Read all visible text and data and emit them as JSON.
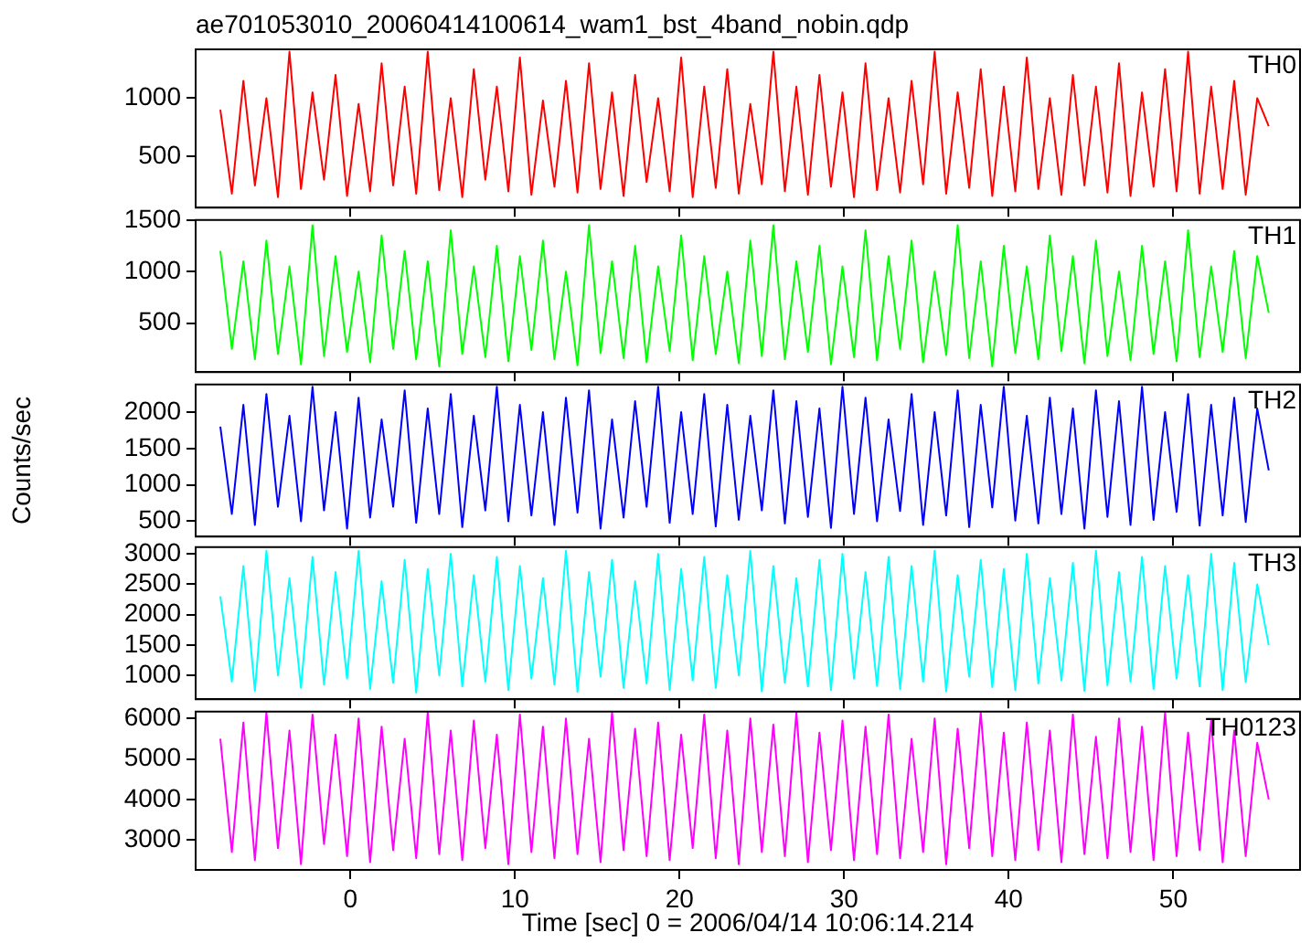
{
  "chart_data": [
    {
      "type": "line",
      "title": "ae701053010_20060414100614_wam1_bst_4band_nobin.qdp",
      "xlim": [
        -9.4,
        57.7
      ],
      "xticks": [
        0,
        10,
        20,
        30,
        40,
        50
      ],
      "ylim": [
        60,
        1420
      ],
      "yticks": [
        500,
        1000
      ],
      "tick_labels": "y",
      "x": [
        -7.9,
        -7.2,
        -6.5,
        -5.8,
        -5.1,
        -4.4,
        -3.7,
        -3.0,
        -2.3,
        -1.6,
        -0.9,
        -0.2,
        0.5,
        1.2,
        1.9,
        2.6,
        3.3,
        4.0,
        4.7,
        5.4,
        6.1,
        6.8,
        7.5,
        8.2,
        8.9,
        9.6,
        10.3,
        11.0,
        11.7,
        12.4,
        13.1,
        13.8,
        14.5,
        15.2,
        15.9,
        16.6,
        17.3,
        18.0,
        18.7,
        19.4,
        20.1,
        20.8,
        21.5,
        22.2,
        22.9,
        23.6,
        24.3,
        25.0,
        25.7,
        26.4,
        27.1,
        27.8,
        28.5,
        29.2,
        29.9,
        30.6,
        31.3,
        32.0,
        32.7,
        33.4,
        34.1,
        34.8,
        35.5,
        36.2,
        36.9,
        37.6,
        38.3,
        39.0,
        39.7,
        40.4,
        41.1,
        41.8,
        42.5,
        43.2,
        43.9,
        44.6,
        45.3,
        46.0,
        46.7,
        47.4,
        48.1,
        48.8,
        49.5,
        50.2,
        50.9,
        51.6,
        52.3,
        53.0,
        53.7,
        54.4,
        55.1,
        55.8
      ],
      "series": [
        {
          "name": "TH0",
          "color": "#ff0000",
          "values": [
            900,
            180,
            1150,
            250,
            1000,
            150,
            1400,
            220,
            1050,
            300,
            1200,
            160,
            950,
            200,
            1300,
            250,
            1100,
            180,
            1400,
            210,
            1000,
            150,
            1250,
            300,
            1100,
            200,
            1350,
            170,
            980,
            240,
            1150,
            190,
            1300,
            220,
            1050,
            160,
            1200,
            280,
            1000,
            200,
            1350,
            150,
            1100,
            230,
            1250,
            180,
            950,
            260,
            1400,
            200,
            1100,
            170,
            1200,
            240,
            1050,
            150,
            1300,
            210,
            1000,
            190,
            1150,
            260,
            1400,
            180,
            1050,
            230,
            1250,
            160,
            1100,
            200,
            1350,
            220,
            1000,
            170,
            1200,
            250,
            1100,
            190,
            1300,
            160,
            1050,
            240,
            1250,
            200,
            1400,
            180,
            1100,
            220,
            1150,
            170,
            1000,
            760
          ]
        }
      ]
    },
    {
      "type": "line",
      "xlim": [
        -9.4,
        57.7
      ],
      "xticks": [
        0,
        10,
        20,
        30,
        40,
        50
      ],
      "ylim": [
        25,
        1500
      ],
      "yticks": [
        500,
        1000,
        1500
      ],
      "tick_labels": "y",
      "x": [
        -7.9,
        -7.2,
        -6.5,
        -5.8,
        -5.1,
        -4.4,
        -3.7,
        -3.0,
        -2.3,
        -1.6,
        -0.9,
        -0.2,
        0.5,
        1.2,
        1.9,
        2.6,
        3.3,
        4.0,
        4.7,
        5.4,
        6.1,
        6.8,
        7.5,
        8.2,
        8.9,
        9.6,
        10.3,
        11.0,
        11.7,
        12.4,
        13.1,
        13.8,
        14.5,
        15.2,
        15.9,
        16.6,
        17.3,
        18.0,
        18.7,
        19.4,
        20.1,
        20.8,
        21.5,
        22.2,
        22.9,
        23.6,
        24.3,
        25.0,
        25.7,
        26.4,
        27.1,
        27.8,
        28.5,
        29.2,
        29.9,
        30.6,
        31.3,
        32.0,
        32.7,
        33.4,
        34.1,
        34.8,
        35.5,
        36.2,
        36.9,
        37.6,
        38.3,
        39.0,
        39.7,
        40.4,
        41.1,
        41.8,
        42.5,
        43.2,
        43.9,
        44.6,
        45.3,
        46.0,
        46.7,
        47.4,
        48.1,
        48.8,
        49.5,
        50.2,
        50.9,
        51.6,
        52.3,
        53.0,
        53.7,
        54.4,
        55.1,
        55.8
      ],
      "series": [
        {
          "name": "TH1",
          "color": "#00ff00",
          "values": [
            1200,
            250,
            1100,
            150,
            1300,
            200,
            1050,
            100,
            1450,
            180,
            1150,
            220,
            1000,
            120,
            1350,
            250,
            1200,
            150,
            1100,
            80,
            1400,
            200,
            1050,
            170,
            1250,
            130,
            1150,
            240,
            1300,
            150,
            1000,
            90,
            1450,
            210,
            1100,
            160,
            1250,
            120,
            1050,
            230,
            1350,
            140,
            1150,
            200,
            1000,
            110,
            1300,
            180,
            1450,
            150,
            1100,
            220,
            1250,
            100,
            1050,
            170,
            1400,
            140,
            1150,
            250,
            1300,
            120,
            1000,
            190,
            1450,
            160,
            1100,
            80,
            1250,
            210,
            1050,
            150,
            1350,
            230,
            1150,
            110,
            1300,
            180,
            1000,
            140,
            1250,
            200,
            1100,
            130,
            1400,
            170,
            1050,
            220,
            1200,
            160,
            1150,
            600
          ]
        }
      ]
    },
    {
      "type": "line",
      "ylabel": "Counts/sec",
      "xlim": [
        -9.4,
        57.7
      ],
      "xticks": [
        0,
        10,
        20,
        30,
        40,
        50
      ],
      "ylim": [
        290,
        2380
      ],
      "yticks": [
        500,
        1000,
        1500,
        2000
      ],
      "tick_labels": "y",
      "x": [
        -7.9,
        -7.2,
        -6.5,
        -5.8,
        -5.1,
        -4.4,
        -3.7,
        -3.0,
        -2.3,
        -1.6,
        -0.9,
        -0.2,
        0.5,
        1.2,
        1.9,
        2.6,
        3.3,
        4.0,
        4.7,
        5.4,
        6.1,
        6.8,
        7.5,
        8.2,
        8.9,
        9.6,
        10.3,
        11.0,
        11.7,
        12.4,
        13.1,
        13.8,
        14.5,
        15.2,
        15.9,
        16.6,
        17.3,
        18.0,
        18.7,
        19.4,
        20.1,
        20.8,
        21.5,
        22.2,
        22.9,
        23.6,
        24.3,
        25.0,
        25.7,
        26.4,
        27.1,
        27.8,
        28.5,
        29.2,
        29.9,
        30.6,
        31.3,
        32.0,
        32.7,
        33.4,
        34.1,
        34.8,
        35.5,
        36.2,
        36.9,
        37.6,
        38.3,
        39.0,
        39.7,
        40.4,
        41.1,
        41.8,
        42.5,
        43.2,
        43.9,
        44.6,
        45.3,
        46.0,
        46.7,
        47.4,
        48.1,
        48.8,
        49.5,
        50.2,
        50.9,
        51.6,
        52.3,
        53.0,
        53.7,
        54.4,
        55.1,
        55.8
      ],
      "series": [
        {
          "name": "TH2",
          "color": "#0000ff",
          "values": [
            1800,
            600,
            2100,
            450,
            2250,
            700,
            1950,
            500,
            2350,
            650,
            2000,
            400,
            2200,
            550,
            1900,
            700,
            2300,
            480,
            2050,
            600,
            2250,
            420,
            1950,
            650,
            2350,
            500,
            2100,
            580,
            2000,
            450,
            2200,
            620,
            2300,
            400,
            1900,
            550,
            2150,
            700,
            2350,
            480,
            2000,
            600,
            2250,
            430,
            2100,
            520,
            1950,
            650,
            2300,
            470,
            2150,
            560,
            2050,
            410,
            2350,
            600,
            2200,
            500,
            1900,
            640,
            2250,
            450,
            2000,
            580,
            2300,
            420,
            2100,
            690,
            2350,
            510,
            1950,
            470,
            2200,
            600,
            2050,
            400,
            2300,
            560,
            2150,
            450,
            2350,
            520,
            2000,
            630,
            2250,
            440,
            2100,
            580,
            2200,
            490,
            2050,
            1200
          ]
        }
      ]
    },
    {
      "type": "line",
      "xlim": [
        -9.4,
        57.7
      ],
      "xticks": [
        0,
        10,
        20,
        30,
        40,
        50
      ],
      "ylim": [
        610,
        3110
      ],
      "yticks": [
        1000,
        1500,
        2000,
        2500,
        3000
      ],
      "tick_labels": "y",
      "x": [
        -7.9,
        -7.2,
        -6.5,
        -5.8,
        -5.1,
        -4.4,
        -3.7,
        -3.0,
        -2.3,
        -1.6,
        -0.9,
        -0.2,
        0.5,
        1.2,
        1.9,
        2.6,
        3.3,
        4.0,
        4.7,
        5.4,
        6.1,
        6.8,
        7.5,
        8.2,
        8.9,
        9.6,
        10.3,
        11.0,
        11.7,
        12.4,
        13.1,
        13.8,
        14.5,
        15.2,
        15.9,
        16.6,
        17.3,
        18.0,
        18.7,
        19.4,
        20.1,
        20.8,
        21.5,
        22.2,
        22.9,
        23.6,
        24.3,
        25.0,
        25.7,
        26.4,
        27.1,
        27.8,
        28.5,
        29.2,
        29.9,
        30.6,
        31.3,
        32.0,
        32.7,
        33.4,
        34.1,
        34.8,
        35.5,
        36.2,
        36.9,
        37.6,
        38.3,
        39.0,
        39.7,
        40.4,
        41.1,
        41.8,
        42.5,
        43.2,
        43.9,
        44.6,
        45.3,
        46.0,
        46.7,
        47.4,
        48.1,
        48.8,
        49.5,
        50.2,
        50.9,
        51.6,
        52.3,
        53.0,
        53.7,
        54.4,
        55.1,
        55.8
      ],
      "series": [
        {
          "name": "TH3",
          "color": "#00ffff",
          "values": [
            2300,
            900,
            2800,
            750,
            3050,
            1000,
            2600,
            800,
            2950,
            850,
            2700,
            950,
            3050,
            780,
            2550,
            880,
            2900,
            720,
            2750,
            1000,
            3000,
            820,
            2650,
            900,
            2950,
            760,
            2800,
            950,
            2600,
            850,
            3050,
            730,
            2700,
            980,
            2900,
            800,
            2550,
            870,
            3000,
            760,
            2750,
            920,
            2950,
            800,
            2650,
            1000,
            3050,
            740,
            2800,
            880,
            2600,
            820,
            2900,
            760,
            3000,
            950,
            2700,
            830,
            2950,
            780,
            2800,
            900,
            3050,
            740,
            2650,
            980,
            2900,
            810,
            2750,
            760,
            3000,
            870,
            2600,
            920,
            2850,
            750,
            3050,
            840,
            2700,
            900,
            2950,
            780,
            2800,
            950,
            2650,
            820,
            3000,
            760,
            2850,
            890,
            2500,
            1500
          ]
        }
      ]
    },
    {
      "type": "line",
      "xlabel": "Time [sec] 0 = 2006/04/14 10:06:14.214",
      "xlim": [
        -9.4,
        57.7
      ],
      "xticks": [
        0,
        10,
        20,
        30,
        40,
        50
      ],
      "ylim": [
        2260,
        6170
      ],
      "yticks": [
        3000,
        4000,
        5000,
        6000
      ],
      "x": [
        -7.9,
        -7.2,
        -6.5,
        -5.8,
        -5.1,
        -4.4,
        -3.7,
        -3.0,
        -2.3,
        -1.6,
        -0.9,
        -0.2,
        0.5,
        1.2,
        1.9,
        2.6,
        3.3,
        4.0,
        4.7,
        5.4,
        6.1,
        6.8,
        7.5,
        8.2,
        8.9,
        9.6,
        10.3,
        11.0,
        11.7,
        12.4,
        13.1,
        13.8,
        14.5,
        15.2,
        15.9,
        16.6,
        17.3,
        18.0,
        18.7,
        19.4,
        20.1,
        20.8,
        21.5,
        22.2,
        22.9,
        23.6,
        24.3,
        25.0,
        25.7,
        26.4,
        27.1,
        27.8,
        28.5,
        29.2,
        29.9,
        30.6,
        31.3,
        32.0,
        32.7,
        33.4,
        34.1,
        34.8,
        35.5,
        36.2,
        36.9,
        37.6,
        38.3,
        39.0,
        39.7,
        40.4,
        41.1,
        41.8,
        42.5,
        43.2,
        43.9,
        44.6,
        45.3,
        46.0,
        46.7,
        47.4,
        48.1,
        48.8,
        49.5,
        50.2,
        50.9,
        51.6,
        52.3,
        53.0,
        53.7,
        54.4,
        55.1,
        55.8
      ],
      "series": [
        {
          "name": "TH0123",
          "color": "#ff00ff",
          "values": [
            5500,
            2700,
            5900,
            2500,
            6150,
            2800,
            5700,
            2400,
            6100,
            2900,
            5600,
            2600,
            6000,
            2450,
            5800,
            2750,
            5500,
            2550,
            6150,
            2650,
            5700,
            2500,
            5950,
            2800,
            5600,
            2400,
            6100,
            2700,
            5800,
            2550,
            6000,
            2650,
            5500,
            2450,
            6150,
            2750,
            5750,
            2600,
            5900,
            2500,
            5600,
            2800,
            6100,
            2550,
            5700,
            2400,
            6000,
            2700,
            5850,
            2600,
            6150,
            2450,
            5650,
            2750,
            5950,
            2500,
            5800,
            2650,
            6100,
            2550,
            5500,
            2700,
            6000,
            2400,
            5750,
            2800,
            6150,
            2600,
            5650,
            2500,
            5900,
            2750,
            5700,
            2450,
            6100,
            2650,
            5550,
            2550,
            6000,
            2700,
            5800,
            2500,
            6150,
            2600,
            5650,
            2750,
            5950,
            2450,
            5700,
            2600,
            5400,
            4000
          ]
        }
      ]
    }
  ]
}
